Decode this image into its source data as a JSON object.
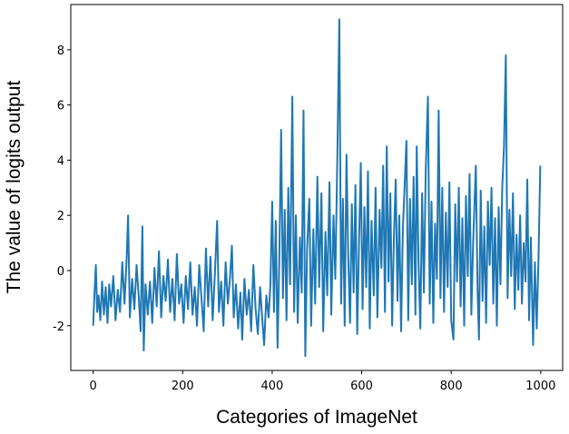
{
  "chart_data": {
    "type": "line",
    "x_label": "Categories of ImageNet",
    "y_label": "The value of logits output",
    "xlim": [
      -50,
      1049
    ],
    "ylim": [
      -3.62,
      9.64
    ],
    "xticks": [
      0,
      200,
      400,
      600,
      800,
      1000
    ],
    "yticks": [
      -2,
      0,
      2,
      4,
      6,
      8
    ],
    "series": [
      {
        "color": "#1f77b4",
        "x": [
          0,
          3,
          6,
          9,
          12,
          16,
          20,
          24,
          28,
          32,
          36,
          40,
          45,
          50,
          55,
          60,
          65,
          70,
          75,
          78,
          82,
          87,
          92,
          97,
          102,
          106,
          110,
          113,
          117,
          122,
          127,
          132,
          137,
          142,
          147,
          152,
          157,
          162,
          167,
          172,
          177,
          182,
          187,
          192,
          197,
          202,
          207,
          212,
          217,
          222,
          227,
          232,
          237,
          242,
          247,
          252,
          257,
          262,
          267,
          272,
          277,
          281,
          286,
          291,
          296,
          301,
          306,
          310,
          314,
          319,
          324,
          329,
          333,
          338,
          343,
          348,
          353,
          358,
          363,
          368,
          373,
          378,
          382,
          387,
          392,
          396,
          400,
          404,
          408,
          412,
          416,
          420,
          424,
          428,
          432,
          436,
          440,
          445,
          449,
          453,
          457,
          462,
          466,
          470,
          474,
          478,
          483,
          487,
          492,
          496,
          501,
          505,
          510,
          514,
          519,
          523,
          528,
          532,
          537,
          541,
          545,
          550,
          554,
          558,
          562,
          566,
          570,
          574,
          578,
          582,
          586,
          590,
          594,
          598,
          602,
          606,
          610,
          614,
          618,
          622,
          627,
          631,
          635,
          640,
          644,
          648,
          652,
          656,
          660,
          664,
          668,
          672,
          676,
          680,
          684,
          688,
          692,
          696,
          700,
          704,
          708,
          712,
          716,
          720,
          723,
          727,
          731,
          735,
          739,
          743,
          748,
          752,
          756,
          760,
          764,
          768,
          772,
          776,
          780,
          784,
          788,
          792,
          796,
          800,
          805,
          809,
          813,
          817,
          821,
          825,
          829,
          833,
          837,
          841,
          845,
          849,
          855,
          859,
          862,
          866,
          870,
          874,
          878,
          882,
          886,
          890,
          894,
          898,
          902,
          906,
          910,
          914,
          918,
          922,
          926,
          930,
          934,
          938,
          942,
          946,
          950,
          954,
          958,
          962,
          966,
          970,
          974,
          978,
          983,
          987,
          991,
          995,
          999
        ],
        "values": [
          -2,
          -0.8,
          0.2,
          -1.5,
          -0.9,
          -1.8,
          -0.4,
          -1.6,
          -0.6,
          -1.9,
          -0.5,
          -1.3,
          -0.2,
          -1.8,
          -0.7,
          -1.5,
          0.3,
          -1.2,
          0.5,
          2.0,
          -1.7,
          -0.3,
          -1.4,
          0.2,
          -1.0,
          -2.2,
          1.6,
          -2.9,
          -0.5,
          -1.6,
          -0.4,
          -1.9,
          0.1,
          -1.3,
          0.7,
          -1.7,
          -0.2,
          -1.1,
          0.4,
          -1.5,
          -0.3,
          -1.8,
          0.6,
          -1.2,
          -0.5,
          -1.9,
          -0.2,
          -1.4,
          0.3,
          -1.6,
          -0.6,
          -2.0,
          0.2,
          -1.0,
          -2.2,
          0.8,
          -1.3,
          0.5,
          -1.8,
          -0.1,
          1.8,
          -1.5,
          -0.4,
          -2.0,
          0.3,
          -1.2,
          -0.2,
          0.9,
          -1.7,
          -0.5,
          -2.1,
          -0.8,
          -2.5,
          -0.3,
          -1.6,
          -0.7,
          -2.2,
          0.2,
          -1.4,
          -2.3,
          -0.6,
          -1.8,
          -2.7,
          -0.9,
          -1.7,
          -0.5,
          2.5,
          -1.5,
          1.8,
          -2.8,
          0.5,
          5.1,
          -1.0,
          2.2,
          -1.8,
          3.0,
          -0.5,
          6.3,
          -1.5,
          2.0,
          -1.9,
          1.2,
          -0.8,
          5.8,
          -3.1,
          0.8,
          2.6,
          -2.0,
          1.5,
          -1.2,
          3.4,
          -0.6,
          2.8,
          -2.2,
          1.4,
          -0.9,
          3.2,
          -1.6,
          2.0,
          -0.3,
          3.5,
          9.1,
          -1.2,
          2.6,
          -2.0,
          4.2,
          0.5,
          -1.9,
          2.4,
          -0.8,
          3.1,
          -2.3,
          1.0,
          3.9,
          -1.4,
          2.3,
          -0.6,
          3.6,
          -2.1,
          1.8,
          -0.9,
          3.0,
          -1.7,
          2.2,
          0.1,
          3.8,
          -1.5,
          4.5,
          -0.4,
          2.8,
          -2.0,
          1.2,
          3.3,
          -1.1,
          2.0,
          -2.2,
          1.5,
          3.1,
          4.7,
          -1.8,
          2.6,
          -0.5,
          3.4,
          -1.6,
          4.5,
          0.3,
          -2.1,
          2.8,
          -0.8,
          3.6,
          6.3,
          -1.2,
          2.5,
          -1.9,
          1.7,
          -0.3,
          5.8,
          -1.0,
          3.0,
          -1.5,
          2.1,
          -0.6,
          3.2,
          -1.8,
          -2.5,
          2.4,
          -0.4,
          3.0,
          -1.3,
          1.9,
          -2.0,
          2.7,
          -0.2,
          3.5,
          -1.6,
          1.0,
          3.8,
          -0.8,
          -2.5,
          2.9,
          -1.1,
          1.6,
          -1.9,
          2.5,
          0.2,
          3.0,
          -1.2,
          1.9,
          -2.0,
          2.3,
          -0.5,
          3.0,
          4.5,
          7.8,
          -1.0,
          2.2,
          -0.2,
          2.8,
          -1.4,
          1.3,
          -0.7,
          2.0,
          -1.2,
          1.0,
          -0.4,
          3.3,
          -1.8,
          1.2,
          -2.7,
          0.3,
          -2.1,
          0.4,
          3.8
        ]
      }
    ]
  }
}
